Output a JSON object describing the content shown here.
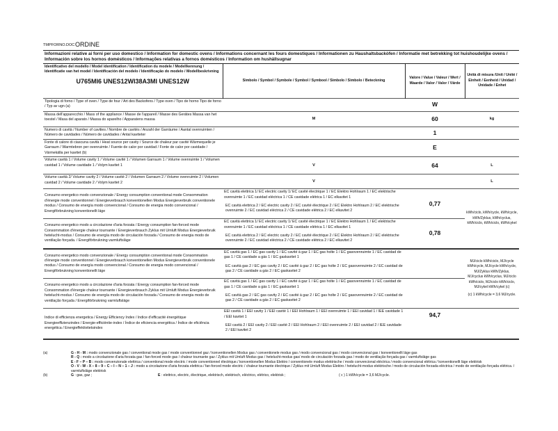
{
  "header": {
    "doc": "TMPFORNO.DOC",
    "order": "ORDINE"
  },
  "title": "Informazioni relative ai forni per uso domestico / Information for domestic ovens / Informations concernant les fours domestiques / Informationen zu Haushaltsbackȯfen / Informatie met betrekking tot huishoudelijke ovens / Información sobre los hornos domésticos / Informações relativas a fornos domésticos / Information om hushällsugnar",
  "columns": {
    "model_label": "Identificativo del modello / Model identification / Identification du modele / Modellkennung / Identificatie van het model / Identificación del modelo / Identificação do modelo / Modellbeskrivning",
    "model": "U765MI6 UNES12WI38A3MI UNES12W",
    "symbol": "Simbolo / Symbol / Symbole / Symbol / Symbool / Simbolo / Simbolo / Beteckning",
    "value": "Valore / Value / Valeur / Wert / Waarde / Valor / Valor / Värde",
    "unit": "Unità di misura /Unit / Unité / Einheit / Eenheid / Unidad / Unidade / Enhet"
  },
  "rows": [
    {
      "label": "Tipologia di forno / Type of oven / Type de four / Art des Backofens / Type oven / Tipo de horno Tipo de forno / Typ av ugn (a)",
      "symbol": "",
      "value": "W",
      "unit": ""
    },
    {
      "label": "Massa dell'apparecchio / Mass of the appliance / Masse de l'appareil / Masse des Gerätes Massa van het toestel / Masa del aparato / Massa do aparelho / Apparatens massa",
      "symbol": "M",
      "value": "60",
      "unit": "kg"
    },
    {
      "label": "Numero di cavità / Number of cavities / Nombre de cavités / Anzahl der Garräume / Aantal ovenruimten / Número de cavidades / Número de cavidades / Antal kaviteter",
      "symbol": "",
      "value": "1",
      "unit": ""
    },
    {
      "label": "Fonte di calore di ciascuna cavità / Heat source per cavity / Source de chaleur par cavité Wärmequelle je Garraum / Warmtebron per ovenruimte / Fuente de calor por cavidad / Fonte de calor por cavidade / Värmekälla per kavitet (b)",
      "symbol": "",
      "value": "E",
      "unit": ""
    },
    {
      "label": "Volume cavità 1 / Volume cavity 1 / Volume cavité 1 / Volumen Garraum 1 / Volume ovenruimte 1 / Volumen cavidad 1 / Volume cavidade 1 / Volym kavitet 1",
      "symbol": "V",
      "value": "64",
      "unit": "L"
    },
    {
      "label": "Volume cavità 2/ Volume cavity 2 / Volume cavité 2 / Volumen Garraum 2 / Volume ovenruimte 2 / Volumen cavidad 2 / Volume cavidade 2 / Volym kavitet 2",
      "symbol": "V",
      "value": "",
      "unit": "L"
    }
  ],
  "electric": {
    "conv_label": "Consumo energetico modo convenzionale / Energy consumption conventional mode Consommation d'énergie mode conventionnel / Energieverbrauch konventionellen Modus Energieverbruik conventionele modus / Consumo de energía modo convencional / Consumo de energia modo convencional / Energiförbrukning konventionellt läge",
    "fan_label": "Consumo energetico modo a circolazione d'aria forzata / Energy consumption fan-forced mode Consommation d'énergie chaleur tournante / Energieverbrauch Zyklus mit Umluft Modus Energieverbruik hetelucht-modus / Consumo de energía modo de circulación forzada / Consumo de energia modo de ventilação forçada. / Energiförbrukning varmluftsläge",
    "sym1": "EC cavità elettrica 1/ EC electric cavity 1/ EC cavité électrique 1 / EC Elektro Hohlraum 1 / EC elektrische ovenruimte 1 / EC cavidad eléctrica 1 / CE cavidade elétrica 1 / EC elkavitet 1",
    "sym2": "EC cavità elettrica 2 / EC electric cavity 2 / EC cavité électrique 2 / EC Elektro Hohlraum 2 / EC elektrische ovenruimte 2 / EC cavidad eléctrica 2 / CE cavidade elétrica 2 / EC elkavitet 2",
    "conv_value": "0,77",
    "fan_value": "0,78",
    "unit": "kWh/ciclo, kWh/cycle, kWh/cycle, kWh/Zyklus, kWh/cyclus, kWh/ciclo, kWh/ciclo, kWh/cykel"
  },
  "gas": {
    "conv_label": "Consumo energetico modo convenzionale / Energy consumption conventional mode Consommation d'énergie mode conventionnel / Energieverbrauch konventionellen Modus Energieverbruik conventionele modus / Consumo de energía modo convencional / Consumo de energia modo convencional / Energiförbrukning konventionellt läge",
    "fan_label": "Consumo energetico modo a circolazione d'aria forzata / Energy consumption fan-forced mode Consommation d'énergie chaleur tournante / Energieverbrauch Zyklus mit Umluft Modus Energieverbruik hetelucht-modus / Consumo de energía modo de circulación forzada / Consumo de energia modo de ventilação forçada / Energiförbrukning varmluftsläge",
    "sym1": "EC cavità gas 1 / EC gas cavity 1 / EC cavité à gaz 1 / EC gas holte 1 / EC gasovenruimte 1 / EC cavidad de gas 1 / CE cavidade a gás 1 / EC gaskavitet 1",
    "sym2": "EC cavità gas 2 / EC gas cavity 2 / EC cavité à gaz 2 / EC gas holte 2 / EC gasovenruimte 2 / EC cavidad de gas 2 / CE cavidade a gás 2 / EC gaskavitet 2",
    "conv_value": "",
    "fan_value": "",
    "unit": "MJ/ciclo kWh/ciclo, MJ/cycle kWh/cycle, MJ/cycle kWh/cycle, MJ/Zyklus kWh/Zyklus, MJ/cyclus kWh/cyclus, MJ/ciclo kWh/ciclo, MJ/ciclo kWh/ciclo, MJ/cykel kWh/cykel (c)",
    "note": "(c) 1 kWh/cycle = 3,6 MJ/cycle."
  },
  "eei": {
    "label": "Indice di efficienza energetica / Energy Efficiency Index / Indice d'efficacité énergétique Energieeffizienzindex / Energie-efficiëntie-index / Índice de eficiencia energética / Índice de eficiência energética / Energieffektivitetsindex",
    "sym1": "EEI cavità 1 / EEI cavity 1 / EEI cavité 1 / EEI Hohlraum 1 / EEI ovenruimte 1 / EEI cavidad 1 / IEE cavidade 1 / EEI kavitet 1",
    "sym2": "EEI cavità 2 / EEI cavity 2 / EEI cavité 2 / EEI Hohlraum 2 / EEI ovenruimte 2 / EEI cavidad 2 / IEE cavidade 2 / EEI kavitet 2",
    "value": "94,7"
  },
  "footnotes": {
    "a_key": "(a)",
    "a1_code": "G - H - M :",
    "a1": "modo convenzionale gas / conventional mode gas / mode conventionnel gaz / konventionellen Modus gas / conventionele modus gas / modo convencional gas / modo convencional gas / konventionellt läge gas",
    "a2_code": "R - Q :",
    "a2": "modo a circolazione d'aria forzata gas / fan-forced mode gas / chaleur tournante gaz / Zyklus mit Umluft Modus gas / hetelucht-modus gas/ modo de circulación forzada gas / modo de ventilação forçada gas / varmluftsläge gas",
    "a3_code": "E - F – P – B :",
    "a3": "modo convenzionale elettrica / conventional mode electric / mode conventionnel électrique./ konventionellen Modus Elektro / conventionele modus elektrische / modo convencional eléctrica / modo convencional elétrica / konventionellt läge elektrisk",
    "a4_code": "O - V - W - X – 8 – 9 – C – I – N – 1 – J :",
    "a4": "modo a circolazione d'aria forzata elettrica / fan-forced mode electric / chaleur tournante électrique / Zyklus mit Umluft Modus Elektro / hetelucht-modus elektrische / modo de circulación forzada eléctrica / modo de ventilação forçada elétrica. / varmluftsläge elektrisk",
    "b_key": "(b)",
    "b_gas_code": "G",
    "b_gas": ": gas, gaz ;",
    "b_el_code": "E",
    "b_el": ": elettrico, electric, électrique, elektrisch, elektrisch, eléctrico, elétrico, elektrisk ;",
    "c": "( c ) 1 kWh/cycle = 3,6 MJ/cycle."
  }
}
